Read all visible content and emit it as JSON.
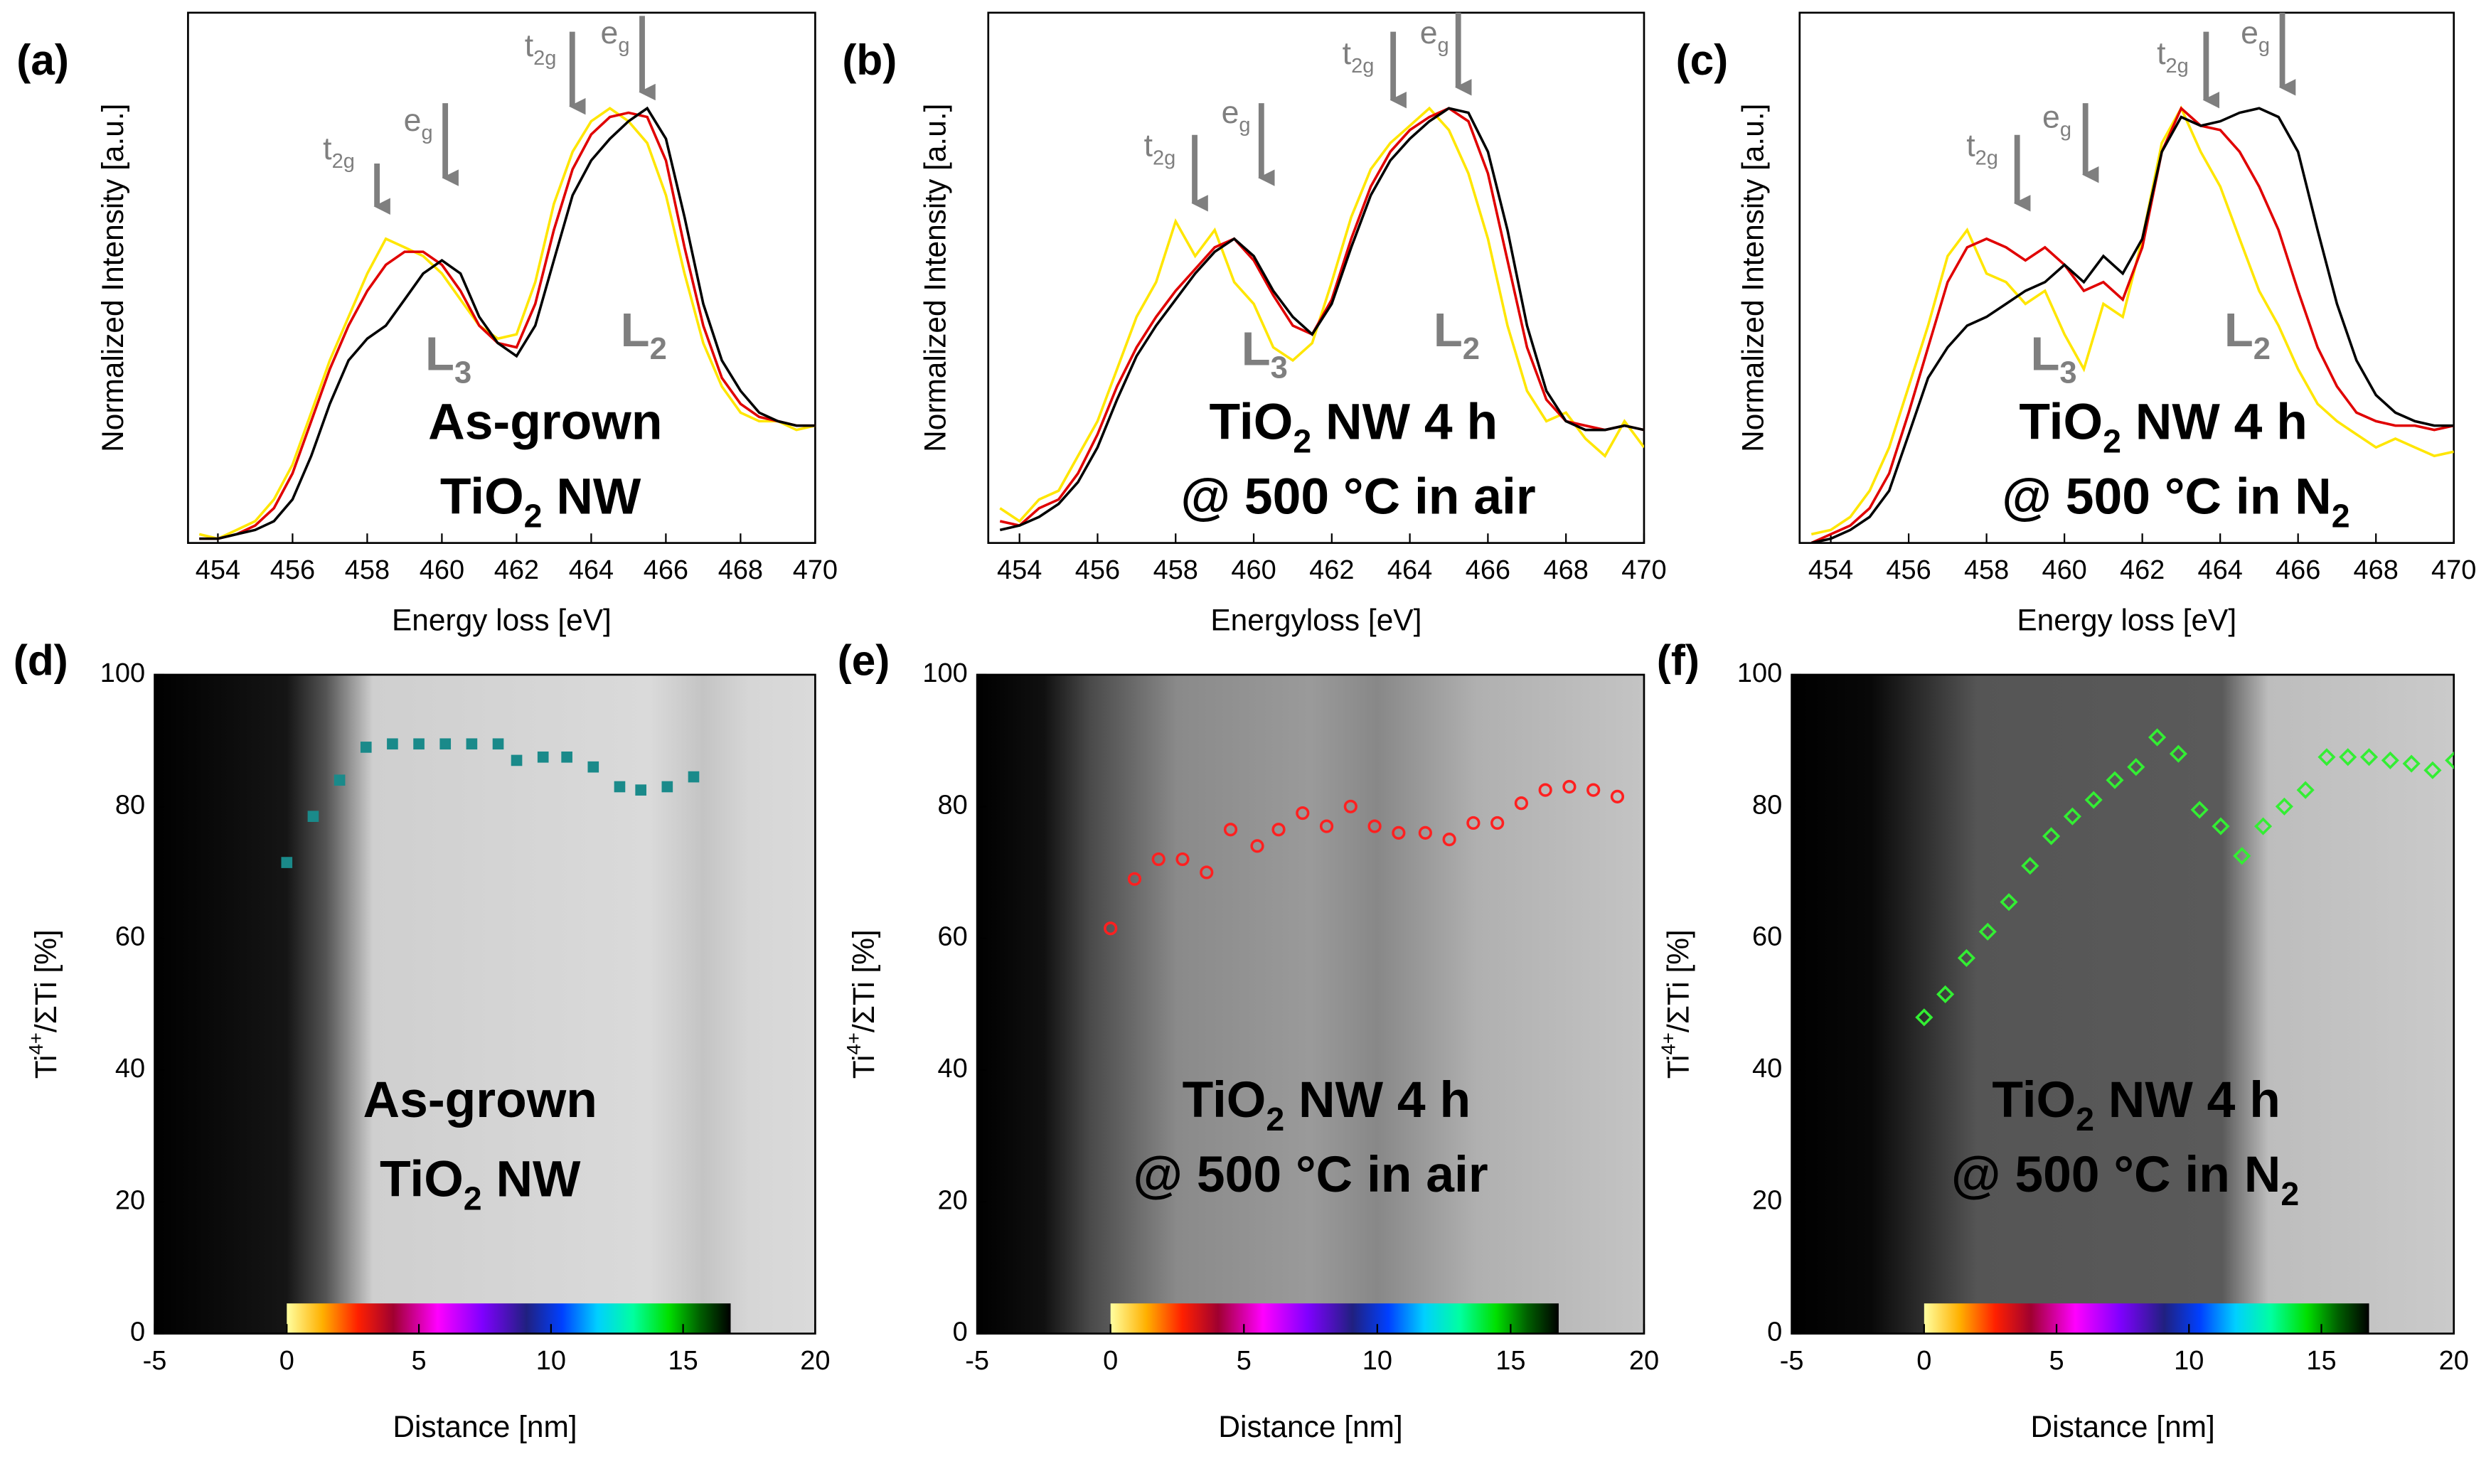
{
  "chart_data": [
    {
      "type": "line",
      "panel_label": "(a)",
      "x_label": "Energy loss [eV]",
      "y_label": "Normalized Intensity [a.u.]",
      "xlim": [
        453.2,
        470
      ],
      "ylim": [
        0,
        1.22
      ],
      "xticks": [
        454,
        456,
        458,
        460,
        462,
        464,
        466,
        468,
        470
      ],
      "x": [
        453.5,
        454,
        454.5,
        455,
        455.5,
        456,
        456.5,
        457,
        457.5,
        458,
        458.5,
        459,
        459.5,
        460,
        460.5,
        461,
        461.5,
        462,
        462.5,
        463,
        463.5,
        464,
        464.5,
        465,
        465.5,
        466,
        466.5,
        467,
        467.5,
        468,
        468.5,
        469,
        469.5,
        470
      ],
      "series": [
        {
          "color": "#ffe600",
          "values": [
            0.02,
            0.01,
            0.03,
            0.05,
            0.1,
            0.18,
            0.3,
            0.42,
            0.52,
            0.62,
            0.7,
            0.68,
            0.66,
            0.62,
            0.56,
            0.5,
            0.47,
            0.48,
            0.6,
            0.78,
            0.9,
            0.97,
            1.0,
            0.97,
            0.92,
            0.8,
            0.62,
            0.46,
            0.36,
            0.3,
            0.28,
            0.28,
            0.26,
            0.27
          ]
        },
        {
          "color": "#e00000",
          "values": [
            0.01,
            0.01,
            0.02,
            0.04,
            0.08,
            0.16,
            0.28,
            0.4,
            0.5,
            0.58,
            0.64,
            0.67,
            0.67,
            0.64,
            0.58,
            0.5,
            0.46,
            0.45,
            0.55,
            0.72,
            0.86,
            0.94,
            0.98,
            0.99,
            0.98,
            0.88,
            0.68,
            0.5,
            0.38,
            0.32,
            0.29,
            0.28,
            0.27,
            0.27
          ]
        },
        {
          "color": "#000000",
          "values": [
            0.01,
            0.01,
            0.02,
            0.03,
            0.05,
            0.1,
            0.2,
            0.32,
            0.42,
            0.47,
            0.5,
            0.56,
            0.62,
            0.65,
            0.62,
            0.52,
            0.46,
            0.43,
            0.5,
            0.65,
            0.8,
            0.88,
            0.93,
            0.97,
            1.0,
            0.93,
            0.75,
            0.55,
            0.42,
            0.35,
            0.3,
            0.28,
            0.27,
            0.27
          ]
        }
      ],
      "peak_labels": [
        [
          "t",
          "2g"
        ],
        [
          "e",
          "g"
        ],
        [
          "t",
          "2g"
        ],
        [
          "e",
          "g"
        ]
      ],
      "edge_labels": [
        [
          "L",
          "3"
        ],
        [
          "L",
          "2"
        ]
      ],
      "inset_text": [
        [
          "As-grown"
        ],
        [
          "TiO",
          "2",
          " NW"
        ]
      ]
    },
    {
      "type": "line",
      "panel_label": "(b)",
      "x_label": "Energyloss [eV]",
      "y_label": "Normalized Intensity [a.u.]",
      "xlim": [
        453.2,
        470
      ],
      "ylim": [
        0,
        1.22
      ],
      "xticks": [
        454,
        456,
        458,
        460,
        462,
        464,
        466,
        468,
        470
      ],
      "x": [
        453.5,
        454,
        454.5,
        455,
        455.5,
        456,
        456.5,
        457,
        457.5,
        458,
        458.5,
        459,
        459.5,
        460,
        460.5,
        461,
        461.5,
        462,
        462.5,
        463,
        463.5,
        464,
        464.5,
        465,
        465.5,
        466,
        466.5,
        467,
        467.5,
        468,
        468.5,
        469,
        469.5,
        470
      ],
      "series": [
        {
          "color": "#ffe600",
          "values": [
            0.08,
            0.05,
            0.1,
            0.12,
            0.2,
            0.28,
            0.4,
            0.52,
            0.6,
            0.74,
            0.66,
            0.72,
            0.6,
            0.55,
            0.45,
            0.42,
            0.46,
            0.6,
            0.75,
            0.86,
            0.92,
            0.96,
            1.0,
            0.95,
            0.85,
            0.7,
            0.5,
            0.35,
            0.28,
            0.3,
            0.24,
            0.2,
            0.28,
            0.22
          ]
        },
        {
          "color": "#e00000",
          "values": [
            0.05,
            0.04,
            0.08,
            0.1,
            0.16,
            0.25,
            0.36,
            0.45,
            0.52,
            0.58,
            0.63,
            0.68,
            0.7,
            0.65,
            0.57,
            0.5,
            0.48,
            0.56,
            0.7,
            0.82,
            0.9,
            0.95,
            0.98,
            1.0,
            0.97,
            0.85,
            0.65,
            0.45,
            0.33,
            0.28,
            0.27,
            0.26,
            0.27,
            0.26
          ]
        },
        {
          "color": "#000000",
          "values": [
            0.03,
            0.04,
            0.06,
            0.09,
            0.14,
            0.22,
            0.33,
            0.43,
            0.5,
            0.56,
            0.62,
            0.67,
            0.7,
            0.66,
            0.58,
            0.52,
            0.48,
            0.55,
            0.68,
            0.8,
            0.88,
            0.93,
            0.97,
            1.0,
            0.99,
            0.9,
            0.72,
            0.5,
            0.35,
            0.28,
            0.26,
            0.26,
            0.27,
            0.26
          ]
        }
      ],
      "peak_labels": [
        [
          "t",
          "2g"
        ],
        [
          "e",
          "g"
        ],
        [
          "t",
          "2g"
        ],
        [
          "e",
          "g"
        ]
      ],
      "edge_labels": [
        [
          "L",
          "3"
        ],
        [
          "L",
          "2"
        ]
      ],
      "inset_text": [
        [
          "TiO",
          "2",
          " NW 4 h"
        ],
        [
          "@ 500 °C in air"
        ]
      ]
    },
    {
      "type": "line",
      "panel_label": "(c)",
      "x_label": "Energy loss [eV]",
      "y_label": "Normalized Intensity [a.u.]",
      "xlim": [
        453.2,
        470
      ],
      "ylim": [
        0,
        1.22
      ],
      "xticks": [
        454,
        456,
        458,
        460,
        462,
        464,
        466,
        468,
        470
      ],
      "x": [
        453.5,
        454,
        454.5,
        455,
        455.5,
        456,
        456.5,
        457,
        457.5,
        458,
        458.5,
        459,
        459.5,
        460,
        460.5,
        461,
        461.5,
        462,
        462.5,
        463,
        463.5,
        464,
        464.5,
        465,
        465.5,
        466,
        466.5,
        467,
        467.5,
        468,
        468.5,
        469,
        469.5,
        470
      ],
      "series": [
        {
          "color": "#ffe600",
          "values": [
            0.02,
            0.03,
            0.06,
            0.12,
            0.22,
            0.36,
            0.5,
            0.66,
            0.72,
            0.62,
            0.6,
            0.55,
            0.58,
            0.48,
            0.4,
            0.55,
            0.52,
            0.7,
            0.92,
            1.0,
            0.9,
            0.82,
            0.7,
            0.58,
            0.5,
            0.4,
            0.32,
            0.28,
            0.25,
            0.22,
            0.24,
            0.22,
            0.2,
            0.21
          ]
        },
        {
          "color": "#e00000",
          "values": [
            0.0,
            0.02,
            0.04,
            0.08,
            0.16,
            0.3,
            0.45,
            0.6,
            0.68,
            0.7,
            0.68,
            0.65,
            0.68,
            0.64,
            0.58,
            0.6,
            0.56,
            0.68,
            0.9,
            1.0,
            0.96,
            0.95,
            0.9,
            0.82,
            0.72,
            0.58,
            0.45,
            0.36,
            0.3,
            0.28,
            0.27,
            0.27,
            0.26,
            0.27
          ]
        },
        {
          "color": "#000000",
          "values": [
            0.0,
            0.01,
            0.03,
            0.06,
            0.12,
            0.25,
            0.38,
            0.45,
            0.5,
            0.52,
            0.55,
            0.58,
            0.6,
            0.64,
            0.6,
            0.66,
            0.62,
            0.7,
            0.9,
            0.98,
            0.96,
            0.97,
            0.99,
            1.0,
            0.98,
            0.9,
            0.72,
            0.55,
            0.42,
            0.34,
            0.3,
            0.28,
            0.27,
            0.27
          ]
        }
      ],
      "peak_labels": [
        [
          "t",
          "2g"
        ],
        [
          "e",
          "g"
        ],
        [
          "t",
          "2g"
        ],
        [
          "e",
          "g"
        ]
      ],
      "edge_labels": [
        [
          "L",
          "3"
        ],
        [
          "L",
          "2"
        ]
      ],
      "inset_text": [
        [
          "TiO",
          "2",
          " NW 4 h"
        ],
        [
          "@ 500 °C in N",
          "2"
        ]
      ]
    },
    {
      "type": "scatter",
      "panel_label": "(d)",
      "x_label": "Distance [nm]",
      "y_label": [
        "Ti",
        "4+",
        "/ΣTi [%]"
      ],
      "xlim": [
        -5,
        20
      ],
      "ylim": [
        0,
        100
      ],
      "xticks": [
        -5,
        0,
        5,
        10,
        15,
        20
      ],
      "yticks": [
        0,
        20,
        40,
        60,
        80,
        100
      ],
      "marker": "square",
      "color": "#1a8a8a",
      "x": [
        0,
        1,
        2,
        3,
        4,
        5,
        6,
        7,
        8,
        8.7,
        9.7,
        10.6,
        11.6,
        12.6,
        13.4,
        14.4,
        15.4
      ],
      "values": [
        71.5,
        78.5,
        84,
        89,
        89.5,
        89.5,
        89.5,
        89.5,
        89.5,
        87,
        87.5,
        87.5,
        86,
        83,
        82.5,
        83,
        84.5
      ],
      "inset_text": [
        [
          "As-grown"
        ],
        [
          "TiO",
          "2",
          " NW"
        ]
      ]
    },
    {
      "type": "scatter",
      "panel_label": "(e)",
      "x_label": "Distance [nm]",
      "y_label": [
        "Ti",
        "4+",
        "/ΣTi [%]"
      ],
      "xlim": [
        -5,
        20
      ],
      "ylim": [
        0,
        100
      ],
      "xticks": [
        -5,
        0,
        5,
        10,
        15,
        20
      ],
      "yticks": [
        0,
        20,
        40,
        60,
        80,
        100
      ],
      "marker": "circle",
      "color": "#ff2020",
      "x": [
        0,
        0.9,
        1.8,
        2.7,
        3.6,
        4.5,
        5.5,
        6.3,
        7.2,
        8.1,
        9.0,
        9.9,
        10.8,
        11.8,
        12.7,
        13.6,
        14.5,
        15.4,
        16.3,
        17.2,
        18.1,
        19.0
      ],
      "values": [
        61.5,
        69,
        72,
        72,
        70,
        76.5,
        74,
        76.5,
        79,
        77,
        80,
        77,
        76,
        76,
        75,
        77.5,
        77.5,
        80.5,
        82.5,
        83,
        82.5,
        81.5
      ],
      "inset_text": [
        [
          "TiO",
          "2",
          " NW 4 h"
        ],
        [
          "@ 500 °C in air"
        ]
      ]
    },
    {
      "type": "scatter",
      "panel_label": "(f)",
      "x_label": "Distance [nm]",
      "y_label": [
        "Ti",
        "4+",
        "/ΣTi [%]"
      ],
      "xlim": [
        -5,
        20
      ],
      "ylim": [
        0,
        100
      ],
      "xticks": [
        -5,
        0,
        5,
        10,
        15,
        20
      ],
      "yticks": [
        0,
        20,
        40,
        60,
        80,
        100
      ],
      "marker": "diamond",
      "color": "#33ee33",
      "x": [
        0,
        0.8,
        1.6,
        2.4,
        3.2,
        4.0,
        4.8,
        5.6,
        6.4,
        7.2,
        8.0,
        8.8,
        9.6,
        10.4,
        11.2,
        12.0,
        12.8,
        13.6,
        14.4,
        15.2,
        16.0,
        16.8,
        17.6,
        18.4,
        19.2,
        20.0
      ],
      "values": [
        48,
        51.5,
        57,
        61,
        65.5,
        71,
        75.5,
        78.5,
        81,
        84,
        86,
        90.5,
        88,
        79.5,
        77,
        72.5,
        77,
        80,
        82.5,
        87.5,
        87.5,
        87.5,
        87,
        86.5,
        85.5,
        87
      ],
      "inset_text": [
        [
          "TiO",
          "2",
          " NW 4 h"
        ],
        [
          "@ 500 °C in N",
          "2"
        ]
      ]
    }
  ]
}
